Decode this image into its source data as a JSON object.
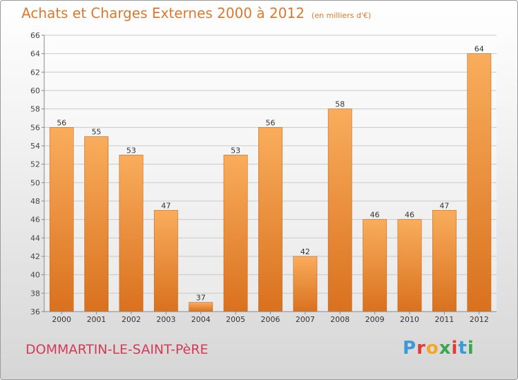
{
  "header": {
    "title": "Achats et Charges Externes 2000 à 2012",
    "subtitle": "(en milliers d'€)"
  },
  "footer": {
    "location": "DOMMARTIN-LE-SAINT-PèRE",
    "brand_letters": [
      "P",
      "r",
      "o",
      "x",
      "i",
      "t",
      "i"
    ],
    "brand_colors": [
      "#3a9ad9",
      "#e53935",
      "#f5a623",
      "#3aa84a",
      "#e53935",
      "#3a9ad9",
      "#3aa84a"
    ]
  },
  "colors": {
    "bar_light": "#f9ad5c",
    "bar_dark": "#d9711e",
    "title": "#e0782c",
    "location": "#d33a57"
  },
  "chart_data": {
    "type": "bar",
    "categories": [
      "2000",
      "2001",
      "2002",
      "2003",
      "2004",
      "2005",
      "2006",
      "2007",
      "2008",
      "2009",
      "2010",
      "2011",
      "2012"
    ],
    "values": [
      56,
      55,
      53,
      47,
      37,
      53,
      56,
      42,
      58,
      46,
      46,
      47,
      64
    ],
    "ylim": [
      36,
      66
    ],
    "yticks": [
      36,
      38,
      40,
      42,
      44,
      46,
      48,
      50,
      52,
      54,
      56,
      58,
      60,
      62,
      64,
      66
    ],
    "grid": true
  }
}
